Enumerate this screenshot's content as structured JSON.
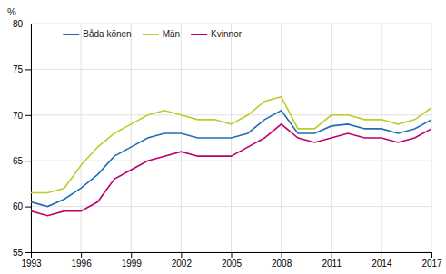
{
  "chart_data": {
    "type": "line",
    "ylabel": "%",
    "x": [
      1993,
      1994,
      1995,
      1996,
      1997,
      1998,
      1999,
      2000,
      2001,
      2002,
      2003,
      2004,
      2005,
      2006,
      2007,
      2008,
      2009,
      2010,
      2011,
      2012,
      2013,
      2014,
      2015,
      2016,
      2017
    ],
    "series": [
      {
        "name": "Båda könen",
        "color": "#1f6eb5",
        "values": [
          60.5,
          60.0,
          60.8,
          62.0,
          63.5,
          65.5,
          66.5,
          67.5,
          68.0,
          68.0,
          67.5,
          67.5,
          67.5,
          68.0,
          69.5,
          70.5,
          68.0,
          68.0,
          68.8,
          69.0,
          68.5,
          68.5,
          68.0,
          68.5,
          69.5
        ]
      },
      {
        "name": "Män",
        "color": "#b8ce2a",
        "values": [
          61.5,
          61.5,
          62.0,
          64.5,
          66.5,
          68.0,
          69.0,
          70.0,
          70.5,
          70.0,
          69.5,
          69.5,
          69.0,
          70.0,
          71.5,
          72.0,
          68.5,
          68.5,
          70.0,
          70.0,
          69.5,
          69.5,
          69.0,
          69.5,
          70.8
        ]
      },
      {
        "name": "Kvinnor",
        "color": "#bb006e",
        "values": [
          59.5,
          59.0,
          59.5,
          59.5,
          60.5,
          63.0,
          64.0,
          65.0,
          65.5,
          66.0,
          65.5,
          65.5,
          65.5,
          66.5,
          67.5,
          69.0,
          67.5,
          67.0,
          67.5,
          68.0,
          67.5,
          67.5,
          67.0,
          67.5,
          68.5
        ]
      }
    ],
    "xlim": [
      1993,
      2017
    ],
    "xticks": [
      1993,
      1996,
      1999,
      2002,
      2005,
      2008,
      2011,
      2014,
      2017
    ],
    "ylim": [
      55,
      80
    ],
    "yticks": [
      55,
      60,
      65,
      70,
      75,
      80
    ],
    "grid": true,
    "legend": "upper left"
  }
}
